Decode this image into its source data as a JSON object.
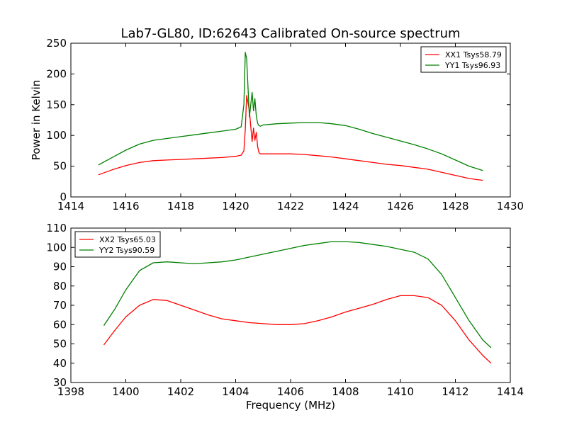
{
  "title": "Lab7-GL80, ID:62643 Calibrated On-source spectrum",
  "chart_data": [
    {
      "type": "line",
      "ylabel": "Power in Kelvin",
      "xlabel": "",
      "xlim": [
        1414,
        1430
      ],
      "ylim": [
        0,
        250
      ],
      "xticks": [
        "1414",
        "1416",
        "1418",
        "1420",
        "1422",
        "1424",
        "1426",
        "1428",
        "1430"
      ],
      "yticks": [
        "0",
        "50",
        "100",
        "150",
        "200",
        "250"
      ],
      "legend": "top-right",
      "grid": false,
      "series": [
        {
          "name": "XX1 Tsys58.79",
          "color": "#ff0000",
          "x": [
            1415.0,
            1415.5,
            1416.0,
            1416.5,
            1417.0,
            1417.5,
            1418.0,
            1418.5,
            1419.0,
            1419.5,
            1420.0,
            1420.2,
            1420.3,
            1420.35,
            1420.4,
            1420.5,
            1420.6,
            1420.65,
            1420.7,
            1420.75,
            1420.8,
            1420.85,
            1420.9,
            1421.0,
            1421.5,
            1422.0,
            1422.5,
            1423.0,
            1423.5,
            1424.0,
            1424.5,
            1425.0,
            1425.5,
            1426.0,
            1426.5,
            1427.0,
            1427.5,
            1428.0,
            1428.5,
            1429.0
          ],
          "y": [
            36,
            44,
            51,
            56,
            59,
            60,
            61,
            62,
            63,
            64,
            66,
            68,
            75,
            110,
            165,
            140,
            90,
            112,
            92,
            105,
            82,
            72,
            70,
            70,
            70,
            70,
            69,
            67,
            65,
            62,
            59,
            56,
            53,
            51,
            48,
            45,
            40,
            35,
            30,
            27
          ]
        },
        {
          "name": "YY1 Tsys96.93",
          "color": "#008000",
          "x": [
            1415.0,
            1415.5,
            1416.0,
            1416.5,
            1417.0,
            1417.5,
            1418.0,
            1418.5,
            1419.0,
            1419.5,
            1420.0,
            1420.2,
            1420.3,
            1420.35,
            1420.4,
            1420.5,
            1420.6,
            1420.65,
            1420.7,
            1420.75,
            1420.8,
            1420.85,
            1420.9,
            1421.0,
            1421.5,
            1422.0,
            1422.5,
            1423.0,
            1423.5,
            1424.0,
            1424.5,
            1425.0,
            1425.5,
            1426.0,
            1426.5,
            1427.0,
            1427.5,
            1428.0,
            1428.5,
            1429.0
          ],
          "y": [
            52,
            64,
            76,
            86,
            92,
            95,
            98,
            101,
            104,
            107,
            110,
            114,
            150,
            235,
            225,
            130,
            170,
            140,
            160,
            132,
            120,
            116,
            115,
            117,
            119,
            120,
            121,
            121,
            119,
            116,
            110,
            103,
            97,
            91,
            85,
            78,
            70,
            60,
            50,
            43
          ]
        }
      ]
    },
    {
      "type": "line",
      "ylabel": "",
      "xlabel": "Frequency (MHz)",
      "xlim": [
        1398,
        1414
      ],
      "ylim": [
        30,
        110
      ],
      "xticks": [
        "1398",
        "1400",
        "1402",
        "1404",
        "1406",
        "1408",
        "1410",
        "1412",
        "1414"
      ],
      "yticks": [
        "30",
        "40",
        "50",
        "60",
        "70",
        "80",
        "90",
        "100",
        "110"
      ],
      "legend": "top-left",
      "grid": false,
      "series": [
        {
          "name": "XX2 Tsys65.03",
          "color": "#ff0000",
          "x": [
            1399.2,
            1399.6,
            1400.0,
            1400.5,
            1401.0,
            1401.5,
            1402.0,
            1402.5,
            1403.0,
            1403.5,
            1404.0,
            1404.5,
            1405.0,
            1405.5,
            1406.0,
            1406.5,
            1407.0,
            1407.5,
            1408.0,
            1408.5,
            1409.0,
            1409.5,
            1410.0,
            1410.5,
            1411.0,
            1411.5,
            1412.0,
            1412.5,
            1413.0,
            1413.3
          ],
          "y": [
            49.5,
            57,
            64,
            70,
            73,
            72.5,
            70,
            67.5,
            65,
            63,
            62,
            61,
            60.5,
            60,
            60,
            60.5,
            62,
            64,
            66.5,
            68.5,
            70.5,
            73,
            75,
            75,
            74,
            70,
            62,
            52,
            44,
            40
          ]
        },
        {
          "name": "YY2 Tsys90.59",
          "color": "#008000",
          "x": [
            1399.2,
            1399.6,
            1400.0,
            1400.5,
            1401.0,
            1401.5,
            1402.0,
            1402.5,
            1403.0,
            1403.5,
            1404.0,
            1404.5,
            1405.0,
            1405.5,
            1406.0,
            1406.5,
            1407.0,
            1407.5,
            1408.0,
            1408.5,
            1409.0,
            1409.5,
            1410.0,
            1410.5,
            1411.0,
            1411.5,
            1412.0,
            1412.5,
            1413.0,
            1413.3
          ],
          "y": [
            59.5,
            68,
            78,
            88,
            92,
            92.5,
            92,
            91.5,
            92,
            92.5,
            93.5,
            95,
            96.5,
            98,
            99.5,
            101,
            102,
            103,
            103,
            102.5,
            101.5,
            100.5,
            99,
            97.5,
            94,
            86,
            74,
            62,
            52,
            48
          ]
        }
      ]
    }
  ]
}
